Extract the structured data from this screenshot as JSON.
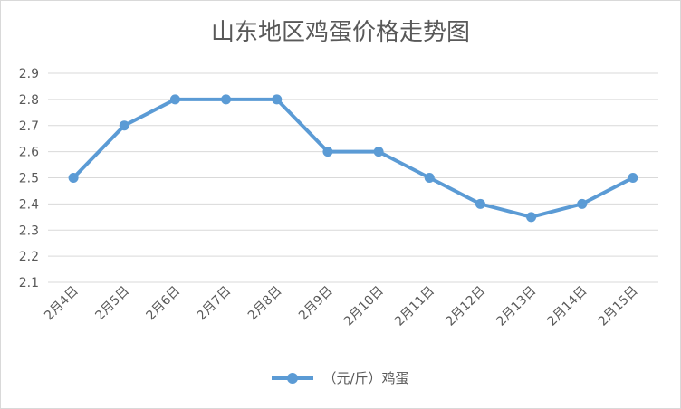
{
  "chart_data": {
    "type": "line",
    "title": "山东地区鸡蛋价格走势图",
    "categories": [
      "2月4日",
      "2月5日",
      "2月6日",
      "2月7日",
      "2月8日",
      "2月9日",
      "2月10日",
      "2月11日",
      "2月12日",
      "2月13日",
      "2月14日",
      "2月15日"
    ],
    "series": [
      {
        "name": "（元/斤）鸡蛋",
        "values": [
          2.5,
          2.7,
          2.8,
          2.8,
          2.8,
          2.6,
          2.6,
          2.5,
          2.4,
          2.35,
          2.4,
          2.5
        ]
      }
    ],
    "yticks": [
      "2.1",
      "2.2",
      "2.3",
      "2.4",
      "2.5",
      "2.6",
      "2.7",
      "2.8",
      "2.9"
    ],
    "ylim": [
      2.1,
      2.9
    ],
    "grid": true,
    "legend_position": "bottom",
    "colors": {
      "series": "#5b9bd5",
      "grid": "#d9d9d9",
      "text": "#595959"
    }
  }
}
